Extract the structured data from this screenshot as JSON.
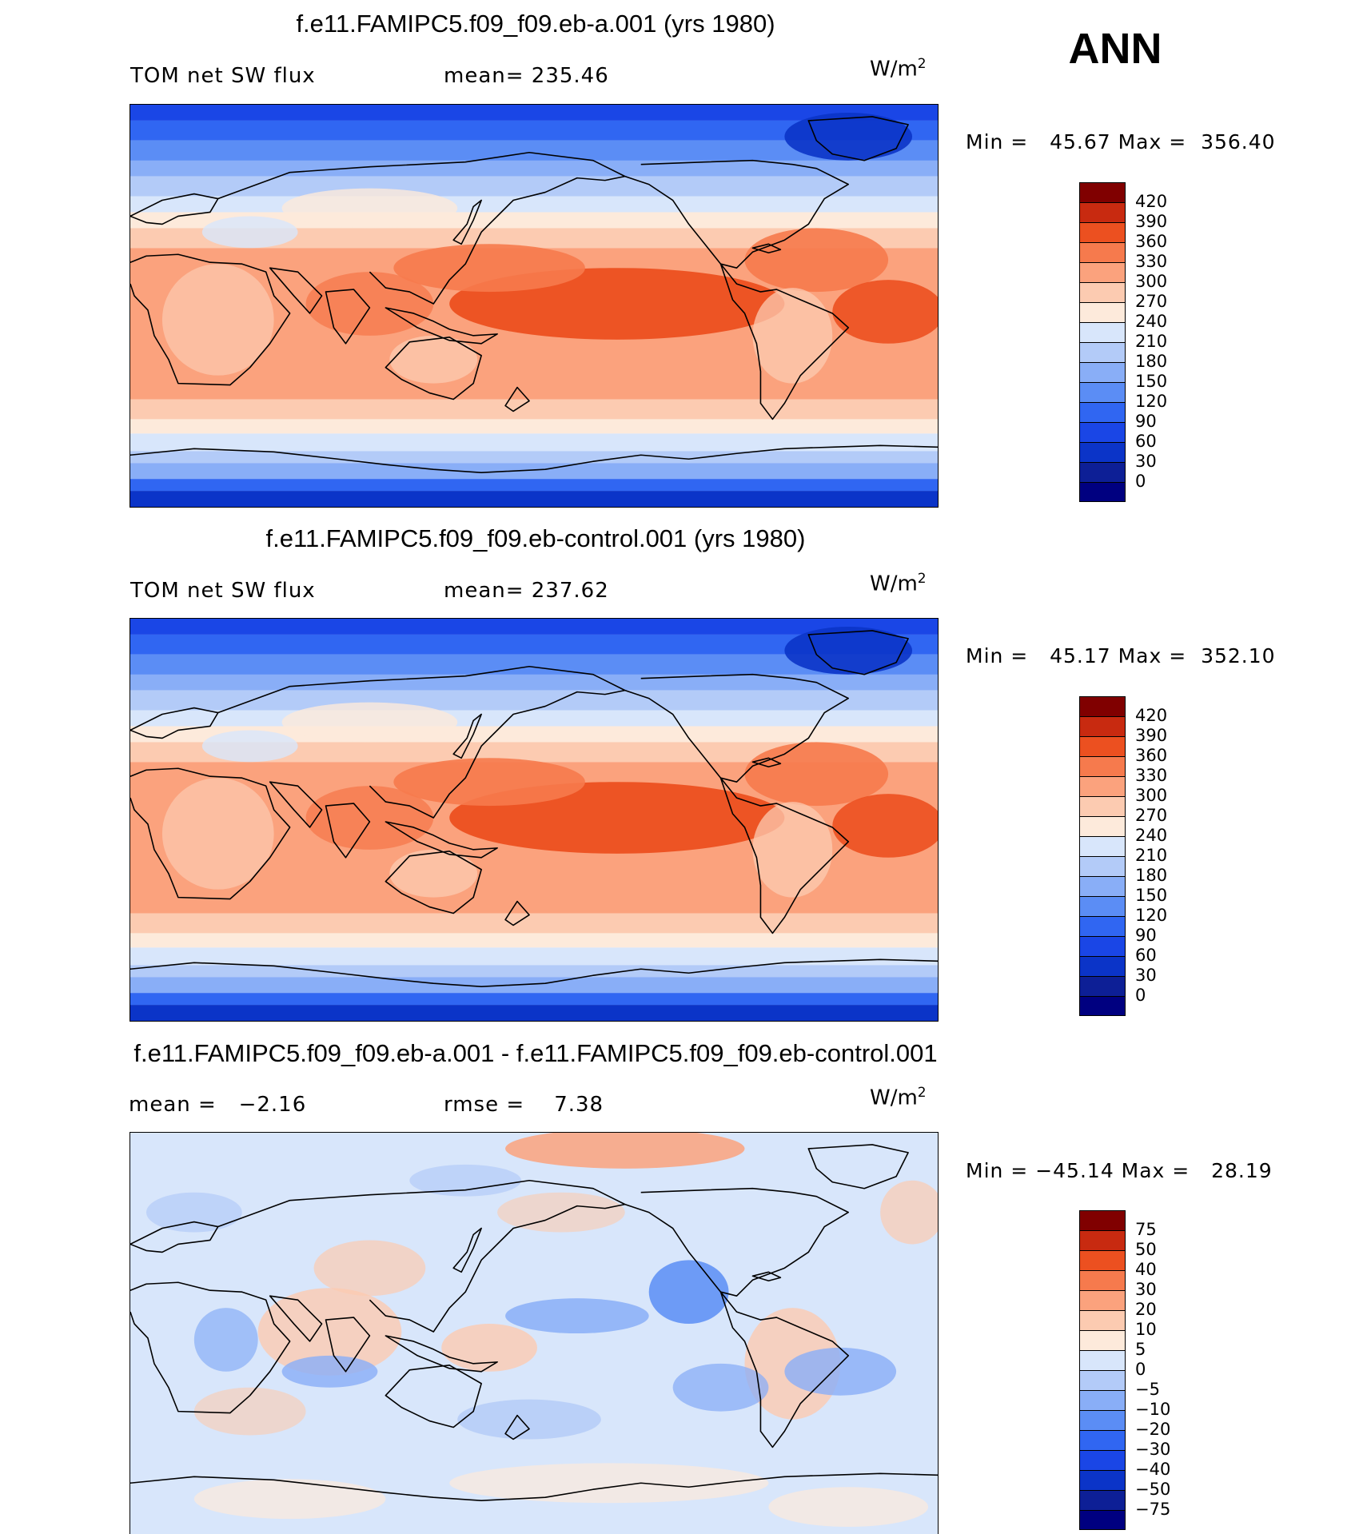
{
  "season": "ANN",
  "panels": [
    {
      "title": "f.e11.FAMIPC5.f09_f09.eb-a.001 (yrs 1980)",
      "left_label": "TOM net SW flux",
      "center_label": "mean= 235.46",
      "units": "W/m",
      "units_exp": "2",
      "minmax": "Min =   45.67 Max =  356.40",
      "kind": "field",
      "colorbar_ticks": [
        "420",
        "390",
        "360",
        "330",
        "300",
        "270",
        "240",
        "210",
        "180",
        "150",
        "120",
        "90",
        "60",
        "30",
        "0"
      ]
    },
    {
      "title": "f.e11.FAMIPC5.f09_f09.eb-control.001 (yrs 1980)",
      "left_label": "TOM net SW flux",
      "center_label": "mean= 237.62",
      "units": "W/m",
      "units_exp": "2",
      "minmax": "Min =   45.17 Max =  352.10",
      "kind": "field",
      "colorbar_ticks": [
        "420",
        "390",
        "360",
        "330",
        "300",
        "270",
        "240",
        "210",
        "180",
        "150",
        "120",
        "90",
        "60",
        "30",
        "0"
      ]
    },
    {
      "title": "f.e11.FAMIPC5.f09_f09.eb-a.001 - f.e11.FAMIPC5.f09_f09.eb-control.001",
      "left_label": "mean =   −2.16",
      "center_label": "rmse =    7.38",
      "units": "W/m",
      "units_exp": "2",
      "minmax": "Min = −45.14 Max =   28.19",
      "kind": "diff",
      "colorbar_ticks": [
        "75",
        "50",
        "40",
        "30",
        "20",
        "10",
        "5",
        "0",
        "−5",
        "−10",
        "−20",
        "−30",
        "−40",
        "−50",
        "−75"
      ]
    }
  ],
  "palette": [
    "#000080",
    "#0d1f96",
    "#0b34c8",
    "#1a46e6",
    "#3066f2",
    "#5b8df5",
    "#89aef7",
    "#b3cbf8",
    "#d8e6fb",
    "#fdeadb",
    "#fccbb1",
    "#fba27d",
    "#f67a4d",
    "#ec5020",
    "#c82a10",
    "#800000"
  ]
}
